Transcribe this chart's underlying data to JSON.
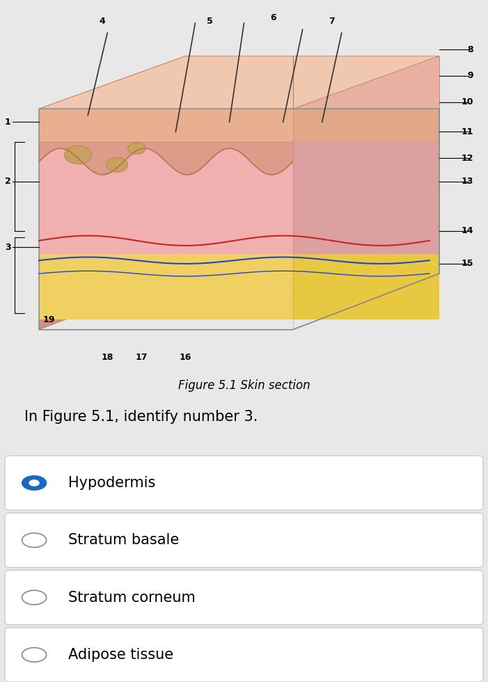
{
  "background_color": "#e8e8e8",
  "figure_caption": "Figure 5.1 Skin section",
  "question_text": "In Figure 5.1, identify number 3.",
  "options": [
    {
      "label": "Hypodermis",
      "selected": true
    },
    {
      "label": "Stratum basale",
      "selected": false
    },
    {
      "label": "Stratum corneum",
      "selected": false
    },
    {
      "label": "Adipose tissue",
      "selected": false
    }
  ],
  "selected_color": "#1a6bbf",
  "unselected_color": "#888888",
  "option_bg": "#f5f5f5",
  "divider_color": "#cccccc",
  "question_font_size": 15,
  "option_font_size": 15,
  "caption_font_size": 12
}
